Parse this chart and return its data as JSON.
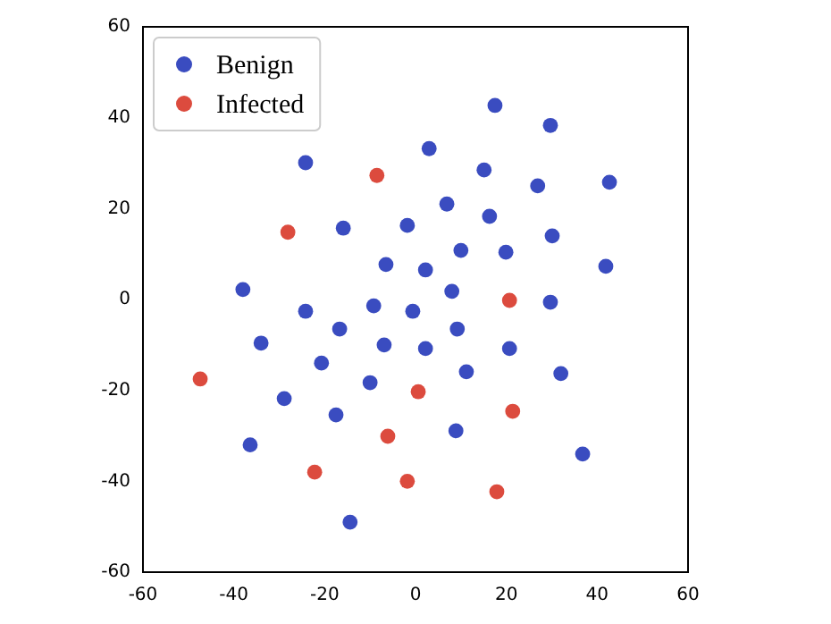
{
  "chart_data": {
    "type": "scatter",
    "xlim": [
      -60,
      60
    ],
    "ylim": [
      -60,
      60
    ],
    "xticks": [
      -60,
      -40,
      -20,
      0,
      20,
      40,
      60
    ],
    "yticks": [
      -60,
      -40,
      -20,
      0,
      20,
      40,
      60
    ],
    "grid": false,
    "legend": "top left",
    "marker": "circle",
    "series": [
      {
        "name": "Benign",
        "color": "#3a4cc0",
        "x": [
          17.5,
          29.7,
          3,
          -24.2,
          15.1,
          26.9,
          42.7,
          6.9,
          16.3,
          -15.9,
          -1.8,
          10,
          19.9,
          30.1,
          41.9,
          -6.5,
          2.2,
          -38,
          8,
          -16.7,
          -24.2,
          -9.2,
          -0.6,
          9.2,
          29.7,
          -34,
          -6.9,
          2.2,
          20.7,
          -20.7,
          11.2,
          32,
          -10,
          -28.9,
          -17.5,
          8.9,
          36.8,
          -36.4,
          -14.4
        ],
        "values": [
          42.7,
          38.3,
          33.2,
          30.1,
          28.5,
          25,
          25.8,
          21,
          18.3,
          15.7,
          16.3,
          10.8,
          10.4,
          14,
          7.3,
          7.7,
          6.5,
          2.2,
          1.8,
          -6.5,
          -2.6,
          -1.4,
          -2.6,
          -6.5,
          -0.6,
          -9.6,
          -10,
          -10.8,
          -10.8,
          -14,
          -15.9,
          -16.3,
          -18.3,
          -21.8,
          -25.4,
          -28.9,
          -34,
          -32,
          -49
        ]
      },
      {
        "name": "Infected",
        "color": "#dc4b3e",
        "x": [
          -8.5,
          -28.1,
          20.7,
          0.6,
          21.4,
          -6.1,
          -22.2,
          -1.8,
          17.9,
          -47.4
        ],
        "values": [
          27.3,
          14.8,
          -0.2,
          -20.3,
          -24.6,
          -30.1,
          -38,
          -40,
          -42.3,
          -17.5
        ]
      }
    ]
  }
}
